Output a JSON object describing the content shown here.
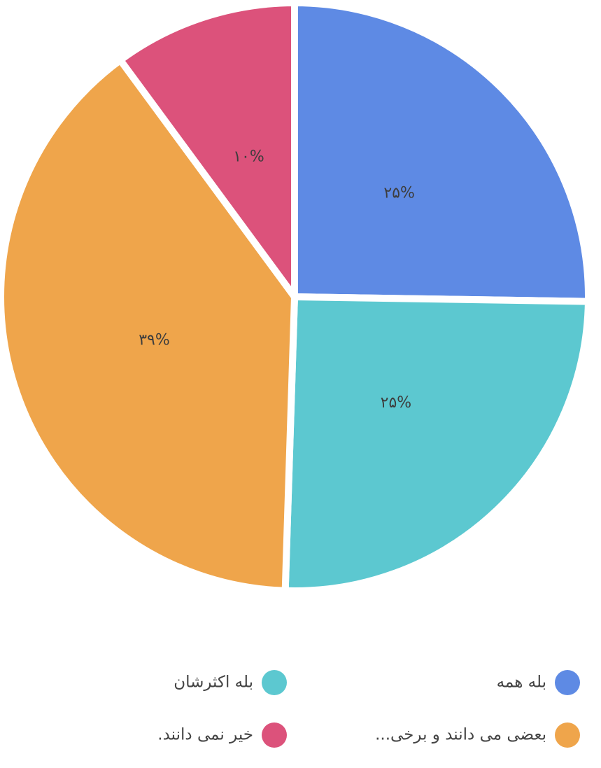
{
  "chart_data": {
    "type": "pie",
    "categories": [
      "بله همه",
      "بله اکثرشان",
      "بعضی می دانند و برخی...",
      "خیر نمی دانند."
    ],
    "values": [
      25,
      25,
      39,
      10
    ],
    "value_labels": [
      "۲۵%",
      "۲۵%",
      "۳۹%",
      "۱۰%"
    ],
    "colors": [
      "#5e8ae4",
      "#5cc8d0",
      "#efa54b",
      "#dc527b"
    ]
  }
}
